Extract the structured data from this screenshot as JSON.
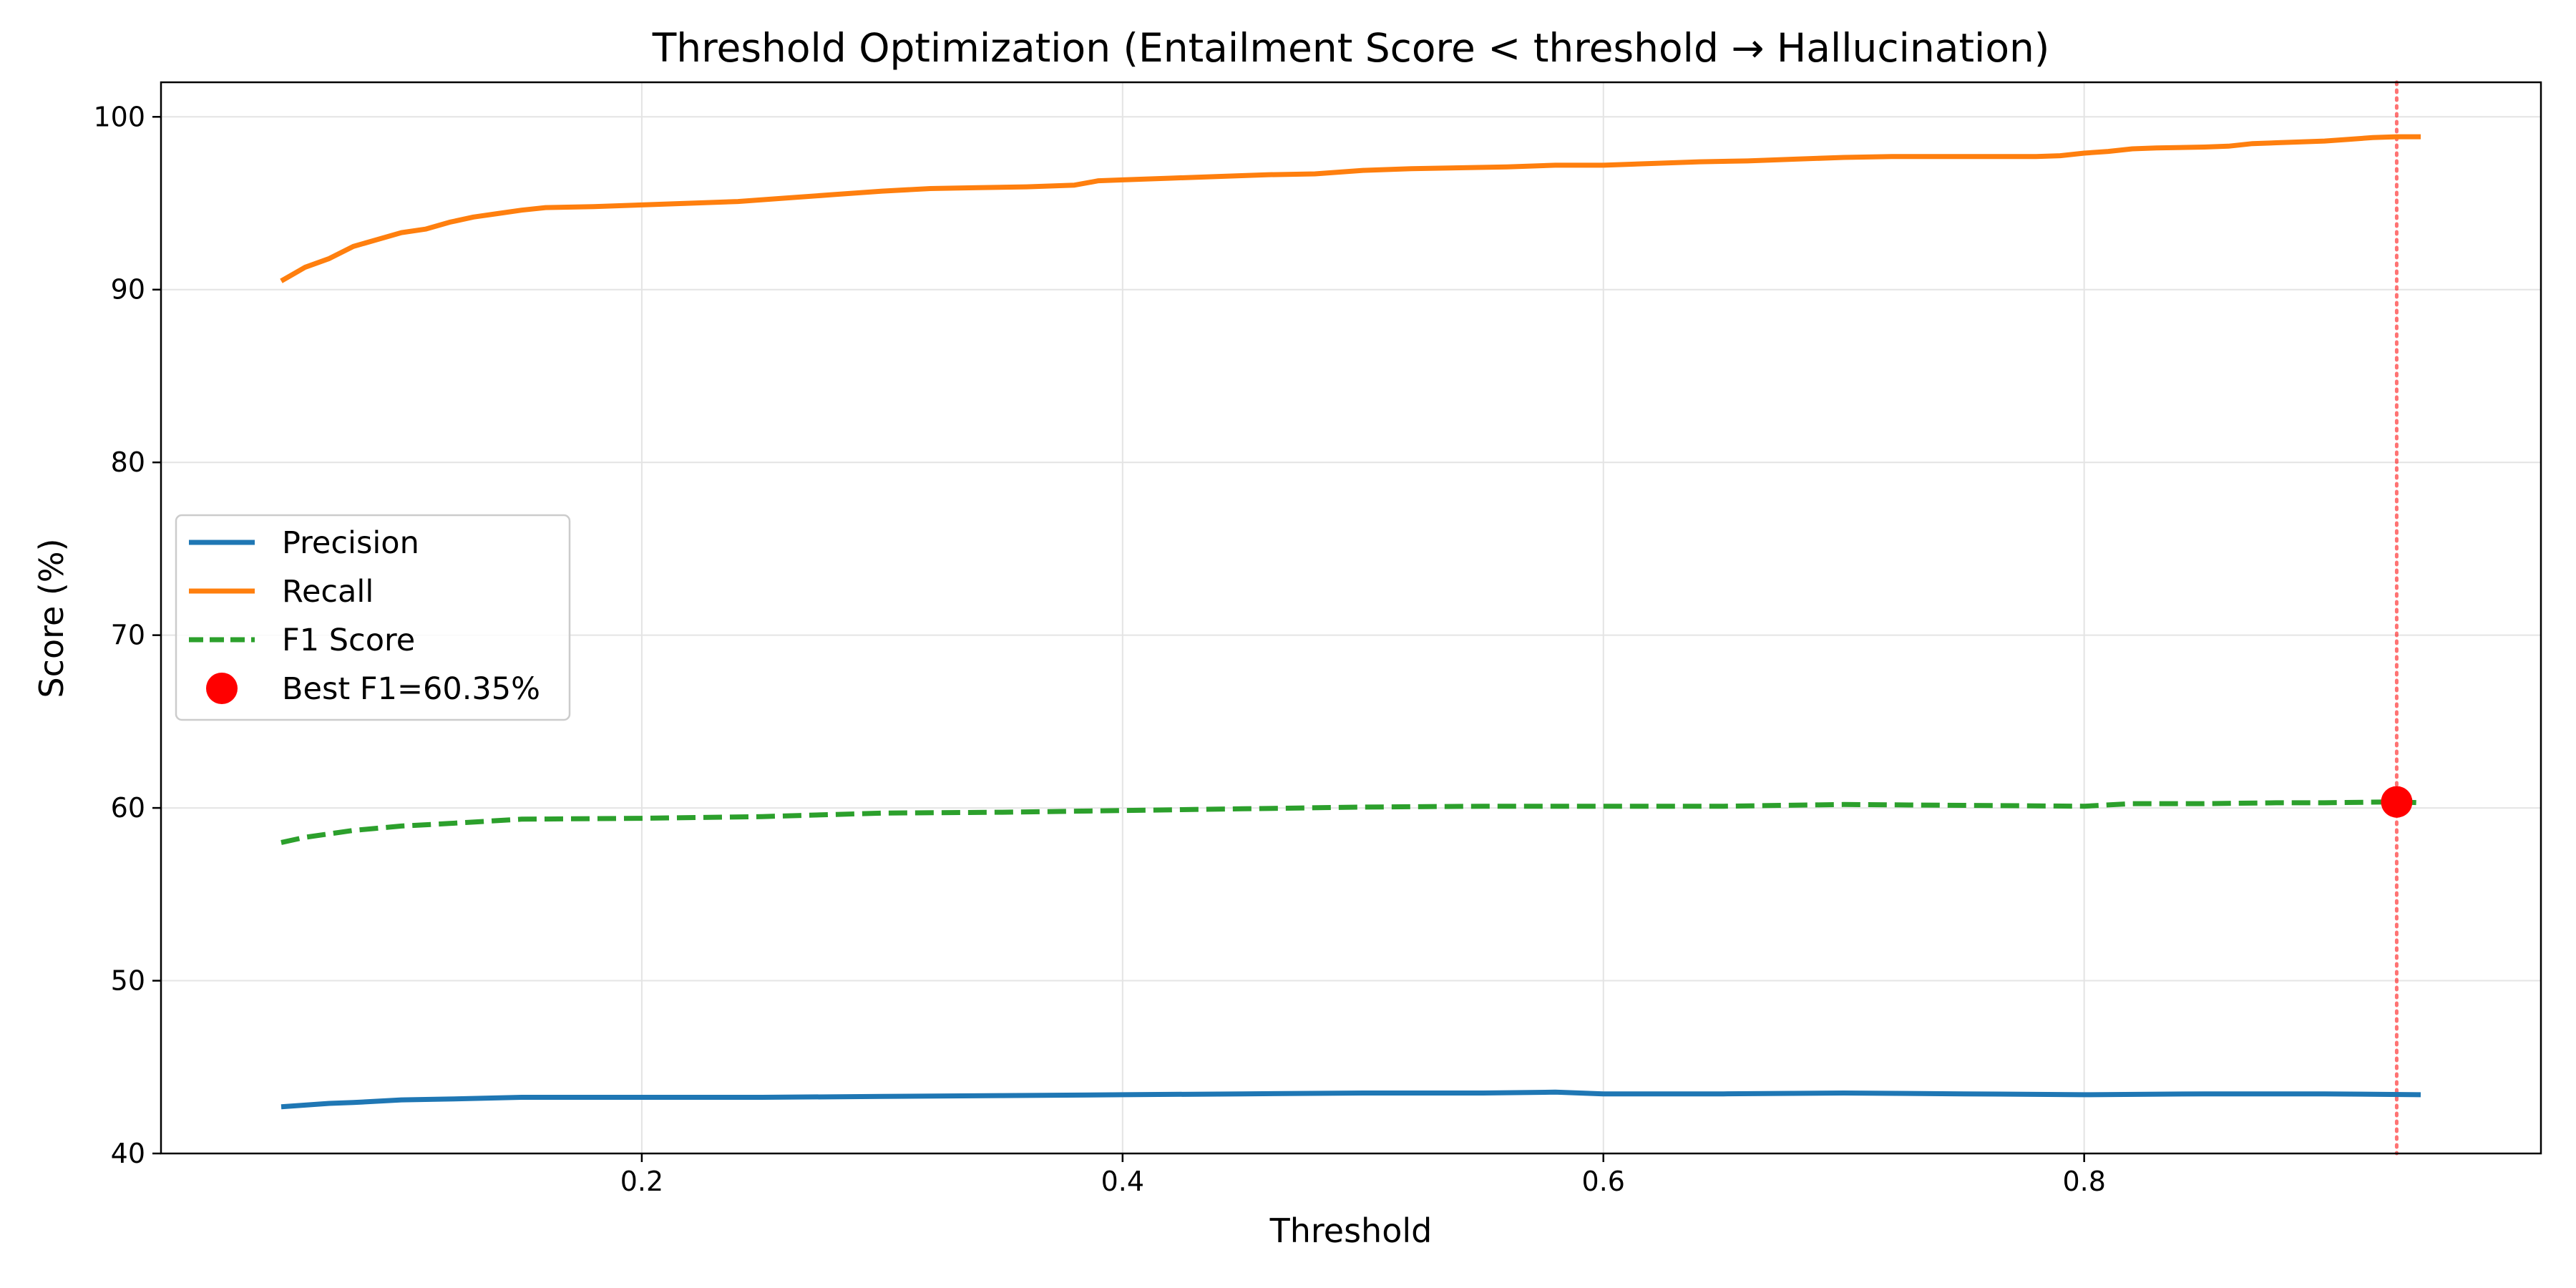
{
  "chart_data": {
    "type": "line",
    "title": "Threshold Optimization (Entailment Score < threshold → Hallucination)",
    "xlabel": "Threshold",
    "ylabel": "Score (%)",
    "xlim": [
      0.0,
      0.99
    ],
    "ylim": [
      40,
      102
    ],
    "xticks": [
      0.2,
      0.4,
      0.6,
      0.8
    ],
    "xtick_labels": [
      "0.2",
      "0.4",
      "0.6",
      "0.8"
    ],
    "yticks": [
      40,
      50,
      60,
      70,
      80,
      90,
      100
    ],
    "ytick_labels": [
      "40",
      "50",
      "60",
      "70",
      "80",
      "90",
      "100"
    ],
    "grid": true,
    "legend_position": "center-left",
    "series": [
      {
        "name": "Precision",
        "color": "#1f77b4",
        "style": "solid",
        "points": [
          [
            0.05,
            42.7
          ],
          [
            0.06,
            42.8
          ],
          [
            0.07,
            42.9
          ],
          [
            0.08,
            42.95
          ],
          [
            0.1,
            43.1
          ],
          [
            0.12,
            43.15
          ],
          [
            0.15,
            43.25
          ],
          [
            0.2,
            43.25
          ],
          [
            0.25,
            43.25
          ],
          [
            0.3,
            43.3
          ],
          [
            0.35,
            43.35
          ],
          [
            0.4,
            43.4
          ],
          [
            0.45,
            43.45
          ],
          [
            0.5,
            43.5
          ],
          [
            0.55,
            43.5
          ],
          [
            0.58,
            43.55
          ],
          [
            0.6,
            43.45
          ],
          [
            0.65,
            43.45
          ],
          [
            0.7,
            43.5
          ],
          [
            0.75,
            43.45
          ],
          [
            0.8,
            43.4
          ],
          [
            0.85,
            43.45
          ],
          [
            0.9,
            43.45
          ],
          [
            0.94,
            43.4
          ]
        ]
      },
      {
        "name": "Recall",
        "color": "#ff7f0e",
        "style": "solid",
        "points": [
          [
            0.05,
            90.5
          ],
          [
            0.06,
            91.3
          ],
          [
            0.07,
            91.8
          ],
          [
            0.08,
            92.5
          ],
          [
            0.09,
            92.9
          ],
          [
            0.1,
            93.3
          ],
          [
            0.11,
            93.5
          ],
          [
            0.12,
            93.9
          ],
          [
            0.13,
            94.2
          ],
          [
            0.14,
            94.4
          ],
          [
            0.15,
            94.6
          ],
          [
            0.16,
            94.75
          ],
          [
            0.18,
            94.8
          ],
          [
            0.2,
            94.9
          ],
          [
            0.22,
            95.0
          ],
          [
            0.24,
            95.1
          ],
          [
            0.26,
            95.3
          ],
          [
            0.28,
            95.5
          ],
          [
            0.3,
            95.7
          ],
          [
            0.32,
            95.85
          ],
          [
            0.34,
            95.9
          ],
          [
            0.36,
            95.95
          ],
          [
            0.38,
            96.05
          ],
          [
            0.39,
            96.3
          ],
          [
            0.4,
            96.35
          ],
          [
            0.42,
            96.45
          ],
          [
            0.44,
            96.55
          ],
          [
            0.46,
            96.65
          ],
          [
            0.48,
            96.7
          ],
          [
            0.5,
            96.9
          ],
          [
            0.52,
            97.0
          ],
          [
            0.54,
            97.05
          ],
          [
            0.56,
            97.1
          ],
          [
            0.58,
            97.2
          ],
          [
            0.6,
            97.2
          ],
          [
            0.62,
            97.3
          ],
          [
            0.64,
            97.4
          ],
          [
            0.66,
            97.45
          ],
          [
            0.68,
            97.55
          ],
          [
            0.7,
            97.65
          ],
          [
            0.72,
            97.7
          ],
          [
            0.74,
            97.7
          ],
          [
            0.76,
            97.7
          ],
          [
            0.78,
            97.7
          ],
          [
            0.79,
            97.75
          ],
          [
            0.8,
            97.9
          ],
          [
            0.81,
            98.0
          ],
          [
            0.82,
            98.15
          ],
          [
            0.83,
            98.2
          ],
          [
            0.85,
            98.25
          ],
          [
            0.86,
            98.3
          ],
          [
            0.87,
            98.45
          ],
          [
            0.88,
            98.5
          ],
          [
            0.9,
            98.6
          ],
          [
            0.91,
            98.7
          ],
          [
            0.92,
            98.8
          ],
          [
            0.93,
            98.85
          ],
          [
            0.94,
            98.85
          ]
        ]
      },
      {
        "name": "F1 Score",
        "color": "#2ca02c",
        "style": "dashed",
        "points": [
          [
            0.05,
            58.0
          ],
          [
            0.06,
            58.3
          ],
          [
            0.07,
            58.5
          ],
          [
            0.08,
            58.7
          ],
          [
            0.1,
            58.95
          ],
          [
            0.12,
            59.1
          ],
          [
            0.15,
            59.35
          ],
          [
            0.2,
            59.4
          ],
          [
            0.25,
            59.5
          ],
          [
            0.3,
            59.7
          ],
          [
            0.35,
            59.75
          ],
          [
            0.4,
            59.85
          ],
          [
            0.45,
            59.95
          ],
          [
            0.5,
            60.05
          ],
          [
            0.55,
            60.1
          ],
          [
            0.6,
            60.1
          ],
          [
            0.65,
            60.1
          ],
          [
            0.7,
            60.2
          ],
          [
            0.75,
            60.15
          ],
          [
            0.8,
            60.1
          ],
          [
            0.82,
            60.25
          ],
          [
            0.85,
            60.25
          ],
          [
            0.88,
            60.3
          ],
          [
            0.9,
            60.3
          ],
          [
            0.93,
            60.35
          ],
          [
            0.94,
            60.3
          ]
        ]
      }
    ],
    "best_point": {
      "label": "Best F1=60.35%",
      "color": "#ff0000",
      "x": 0.93,
      "y": 60.35
    },
    "threshold_line": {
      "x": 0.93,
      "color": "#ff0000",
      "style": "dotted"
    }
  }
}
